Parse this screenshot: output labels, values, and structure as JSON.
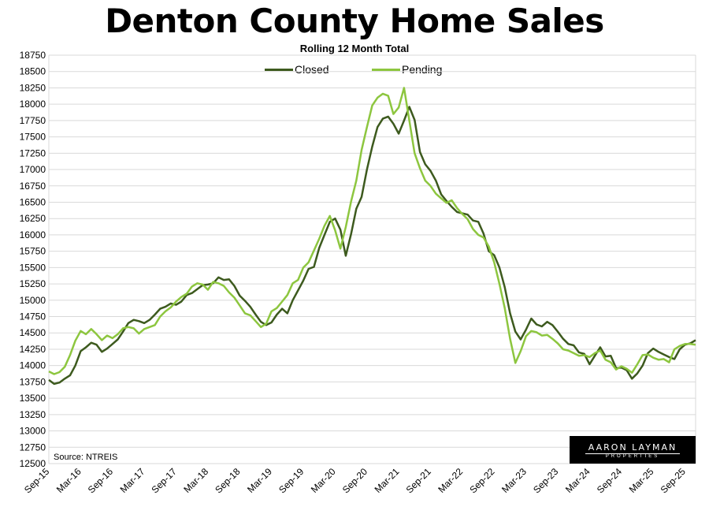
{
  "chart_data": {
    "type": "line",
    "title": "Denton County Home Sales",
    "subtitle": "Rolling 12 Month Total",
    "source": "Source: NTREIS",
    "logo": {
      "line1": "AARON LAYMAN",
      "line2": "PROPERTIES"
    },
    "ylim": [
      12500,
      18750
    ],
    "yticks": [
      12500,
      12750,
      13000,
      13250,
      13500,
      13750,
      14000,
      14250,
      14500,
      14750,
      15000,
      15250,
      15500,
      15750,
      16000,
      16250,
      16500,
      16750,
      17000,
      17250,
      17500,
      17750,
      18000,
      18250,
      18500,
      18750
    ],
    "xticks": [
      {
        "index": 0,
        "label": "Sep-15"
      },
      {
        "index": 6,
        "label": "Mar-16"
      },
      {
        "index": 12,
        "label": "Sep-16"
      },
      {
        "index": 18,
        "label": "Mar-17"
      },
      {
        "index": 24,
        "label": "Sep-17"
      },
      {
        "index": 30,
        "label": "Mar-18"
      },
      {
        "index": 36,
        "label": "Sep-18"
      },
      {
        "index": 42,
        "label": "Mar-19"
      },
      {
        "index": 48,
        "label": "Sep-19"
      },
      {
        "index": 54,
        "label": "Mar-20"
      },
      {
        "index": 60,
        "label": "Sep-20"
      },
      {
        "index": 66,
        "label": "Mar-21"
      },
      {
        "index": 72,
        "label": "Sep-21"
      },
      {
        "index": 78,
        "label": "Mar-22"
      },
      {
        "index": 84,
        "label": "Sep-22"
      },
      {
        "index": 90,
        "label": "Mar-23"
      },
      {
        "index": 96,
        "label": "Sep-23"
      },
      {
        "index": 102,
        "label": "Mar-24"
      },
      {
        "index": 108,
        "label": "Sep-24"
      },
      {
        "index": 114,
        "label": "Mar-25"
      },
      {
        "index": 120,
        "label": "Sep-25"
      }
    ],
    "grid": true,
    "legend_position": "top-center",
    "series": [
      {
        "name": "Closed",
        "color": "#3d5a1e",
        "values": [
          13780,
          13720,
          13740,
          13800,
          13850,
          14000,
          14220,
          14280,
          14350,
          14320,
          14210,
          14260,
          14330,
          14400,
          14520,
          14650,
          14700,
          14680,
          14650,
          14700,
          14780,
          14870,
          14900,
          14950,
          14930,
          14980,
          15080,
          15110,
          15170,
          15230,
          15240,
          15260,
          15350,
          15310,
          15320,
          15220,
          15070,
          14990,
          14900,
          14780,
          14670,
          14620,
          14660,
          14780,
          14870,
          14800,
          15000,
          15150,
          15300,
          15480,
          15510,
          15800,
          16000,
          16200,
          16250,
          16080,
          15680,
          16010,
          16400,
          16580,
          17000,
          17350,
          17650,
          17780,
          17810,
          17700,
          17550,
          17750,
          17960,
          17760,
          17270,
          17080,
          16980,
          16830,
          16620,
          16520,
          16430,
          16350,
          16330,
          16310,
          16220,
          16200,
          16020,
          15750,
          15690,
          15500,
          15200,
          14800,
          14520,
          14400,
          14550,
          14720,
          14630,
          14600,
          14670,
          14620,
          14520,
          14410,
          14330,
          14310,
          14200,
          14180,
          14020,
          14150,
          14280,
          14140,
          14150,
          13960,
          13970,
          13930,
          13800,
          13880,
          14000,
          14190,
          14260,
          14210,
          14170,
          14130,
          14100,
          14250,
          14320,
          14340,
          14390
        ]
      },
      {
        "name": "Pending",
        "color": "#8dc63f",
        "values": [
          13910,
          13870,
          13900,
          13980,
          14160,
          14380,
          14530,
          14480,
          14560,
          14480,
          14390,
          14460,
          14420,
          14480,
          14570,
          14590,
          14570,
          14490,
          14560,
          14590,
          14620,
          14750,
          14830,
          14890,
          14980,
          15050,
          15100,
          15210,
          15260,
          15240,
          15160,
          15280,
          15260,
          15220,
          15120,
          15040,
          14920,
          14800,
          14770,
          14680,
          14590,
          14640,
          14830,
          14880,
          14980,
          15080,
          15260,
          15310,
          15500,
          15580,
          15760,
          15940,
          16140,
          16290,
          16070,
          15790,
          16120,
          16510,
          16830,
          17300,
          17650,
          17980,
          18100,
          18160,
          18130,
          17850,
          17950,
          18250,
          17750,
          17250,
          17020,
          16830,
          16750,
          16630,
          16560,
          16490,
          16530,
          16410,
          16320,
          16240,
          16090,
          16000,
          15960,
          15820,
          15580,
          15250,
          14880,
          14410,
          14040,
          14220,
          14450,
          14530,
          14510,
          14460,
          14470,
          14410,
          14340,
          14250,
          14230,
          14190,
          14150,
          14160,
          14130,
          14190,
          14230,
          14090,
          14050,
          13940,
          13990,
          13950,
          13890,
          14020,
          14160,
          14170,
          14120,
          14090,
          14100,
          14050,
          14250,
          14300,
          14330,
          14330,
          14320
        ]
      }
    ]
  }
}
